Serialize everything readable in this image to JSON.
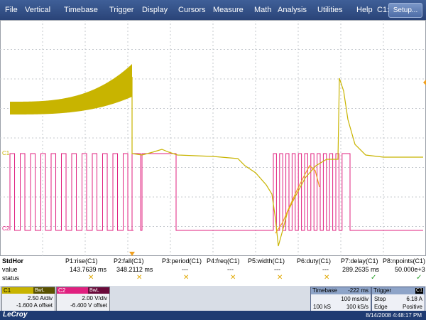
{
  "menu": {
    "items": [
      "File",
      "Vertical",
      "Timebase",
      "Trigger",
      "Display",
      "Cursors",
      "Measure",
      "Math",
      "Analysis",
      "Utilities",
      "Help"
    ],
    "channel_indicator": "C1:",
    "setup_label": "Setup..."
  },
  "screen": {
    "ch1_marker": "C1",
    "ch2_marker": "C2"
  },
  "measure": {
    "row_labels": [
      "StdHor",
      "value",
      "status"
    ],
    "headers": [
      "P1:rise(C1)",
      "P2:fall(C1)",
      "P3:period(C1)",
      "P4:freq(C1)",
      "P5:width(C1)",
      "P6:duty(C1)",
      "P7:delay(C1)",
      "P8:npoints(C1)"
    ],
    "values": [
      "143.7639 ms",
      "348.2112 ms",
      "---",
      "---",
      "---",
      "---",
      "289.2635 ms",
      "50.000e+3"
    ],
    "status_marks": [
      "✕",
      "✕",
      "✕",
      "✕",
      "✕",
      "✕",
      "✓",
      "✓"
    ]
  },
  "channels": [
    {
      "label": "C1",
      "tag": "BwL DC1M",
      "scale": "2.50 A/div",
      "offset": "-1.600 A offset",
      "color": "#c8b400"
    },
    {
      "label": "C2",
      "tag": "BwL DC1M",
      "scale": "2.00 V/div",
      "offset": "-6.400 V offset",
      "color": "#e0207f"
    }
  ],
  "timebase": {
    "title": "Timebase",
    "delay": "-222 ms",
    "per_div": "100 ms/div",
    "samples": "100 kS",
    "rate": "100 kS/s"
  },
  "trigger": {
    "title": "Trigger",
    "source": "C1",
    "mode": "Stop",
    "level": "6.18 A",
    "type": "Edge",
    "slope": "Positive"
  },
  "status_bar": {
    "logo": "LeCroy",
    "datetime": "8/14/2008 4:48:17 PM"
  },
  "colors": {
    "ch1": "#c8b400",
    "ch2": "#e0207f",
    "math": "#f0a020",
    "menubar": "#2a4478"
  }
}
